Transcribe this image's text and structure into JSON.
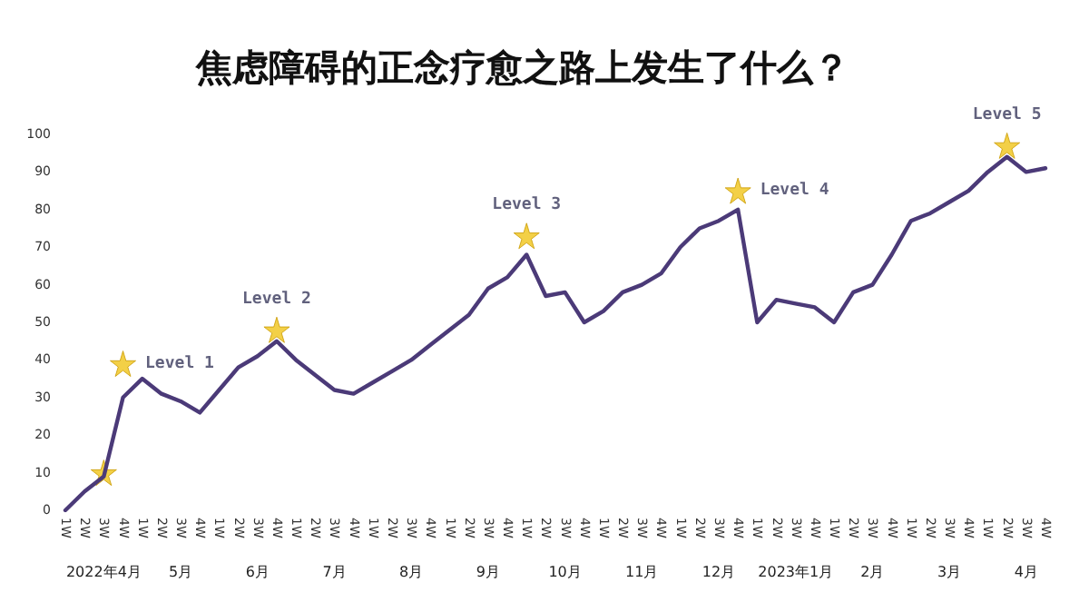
{
  "chart_data": {
    "type": "line",
    "title": "焦虑障碍的正念疗愈之路上发生了什么？",
    "categories": [
      "1W",
      "2W",
      "3W",
      "4W",
      "1W",
      "2W",
      "3W",
      "4W",
      "1W",
      "2W",
      "3W",
      "4W",
      "1W",
      "2W",
      "3W",
      "4W",
      "1W",
      "2W",
      "3W",
      "4W",
      "1W",
      "2W",
      "3W",
      "4W",
      "1W",
      "2W",
      "3W",
      "4W",
      "1W",
      "2W",
      "3W",
      "4W",
      "1W",
      "2W",
      "3W",
      "4W",
      "1W",
      "2W",
      "3W",
      "4W",
      "1W",
      "2W",
      "3W",
      "4W",
      "1W",
      "2W",
      "3W",
      "4W",
      "1W",
      "2W",
      "3W",
      "4W"
    ],
    "series": [
      {
        "color": "#4b3a78",
        "values": [
          0,
          5,
          9,
          30,
          35,
          31,
          29,
          26,
          32,
          38,
          41,
          45,
          40,
          36,
          32,
          31,
          34,
          37,
          40,
          44,
          48,
          52,
          59,
          62,
          68,
          57,
          58,
          50,
          53,
          58,
          60,
          63,
          70,
          75,
          77,
          80,
          50,
          56,
          55,
          54,
          50,
          58,
          60,
          68,
          77,
          79,
          82,
          85,
          90,
          94,
          90,
          91
        ]
      },
      {
        "type": "scatter",
        "marker": "star",
        "color": "#f0c419",
        "values": [
          null,
          null,
          10,
          39,
          null,
          null,
          null,
          null,
          null,
          null,
          null,
          48,
          null,
          null,
          null,
          null,
          null,
          null,
          null,
          null,
          null,
          null,
          null,
          null,
          73,
          null,
          null,
          null,
          null,
          null,
          null,
          null,
          null,
          null,
          null,
          85,
          null,
          null,
          null,
          null,
          null,
          null,
          null,
          null,
          null,
          null,
          null,
          null,
          null,
          97,
          null,
          null
        ],
        "value_labels": [
          null,
          null,
          null,
          "Level 1",
          null,
          null,
          null,
          null,
          null,
          null,
          null,
          "Level 2",
          null,
          null,
          null,
          null,
          null,
          null,
          null,
          null,
          null,
          null,
          null,
          null,
          "Level 3",
          null,
          null,
          null,
          null,
          null,
          null,
          null,
          null,
          null,
          null,
          "Level 4",
          null,
          null,
          null,
          null,
          null,
          null,
          null,
          null,
          null,
          null,
          null,
          null,
          null,
          "Level 5",
          null,
          null
        ]
      }
    ],
    "annotations": [
      "2022年4月",
      "5月",
      "6月",
      "7月",
      "8月",
      "9月",
      "10月",
      "11月",
      "12月",
      "2023年1月",
      "2月",
      "3月",
      "4月"
    ],
    "ylim": [
      0,
      100
    ],
    "yticks": [
      0,
      10,
      20,
      30,
      40,
      50,
      60,
      70,
      80,
      90,
      100
    ],
    "grid": false,
    "line_style": "solid",
    "marker": "none"
  }
}
